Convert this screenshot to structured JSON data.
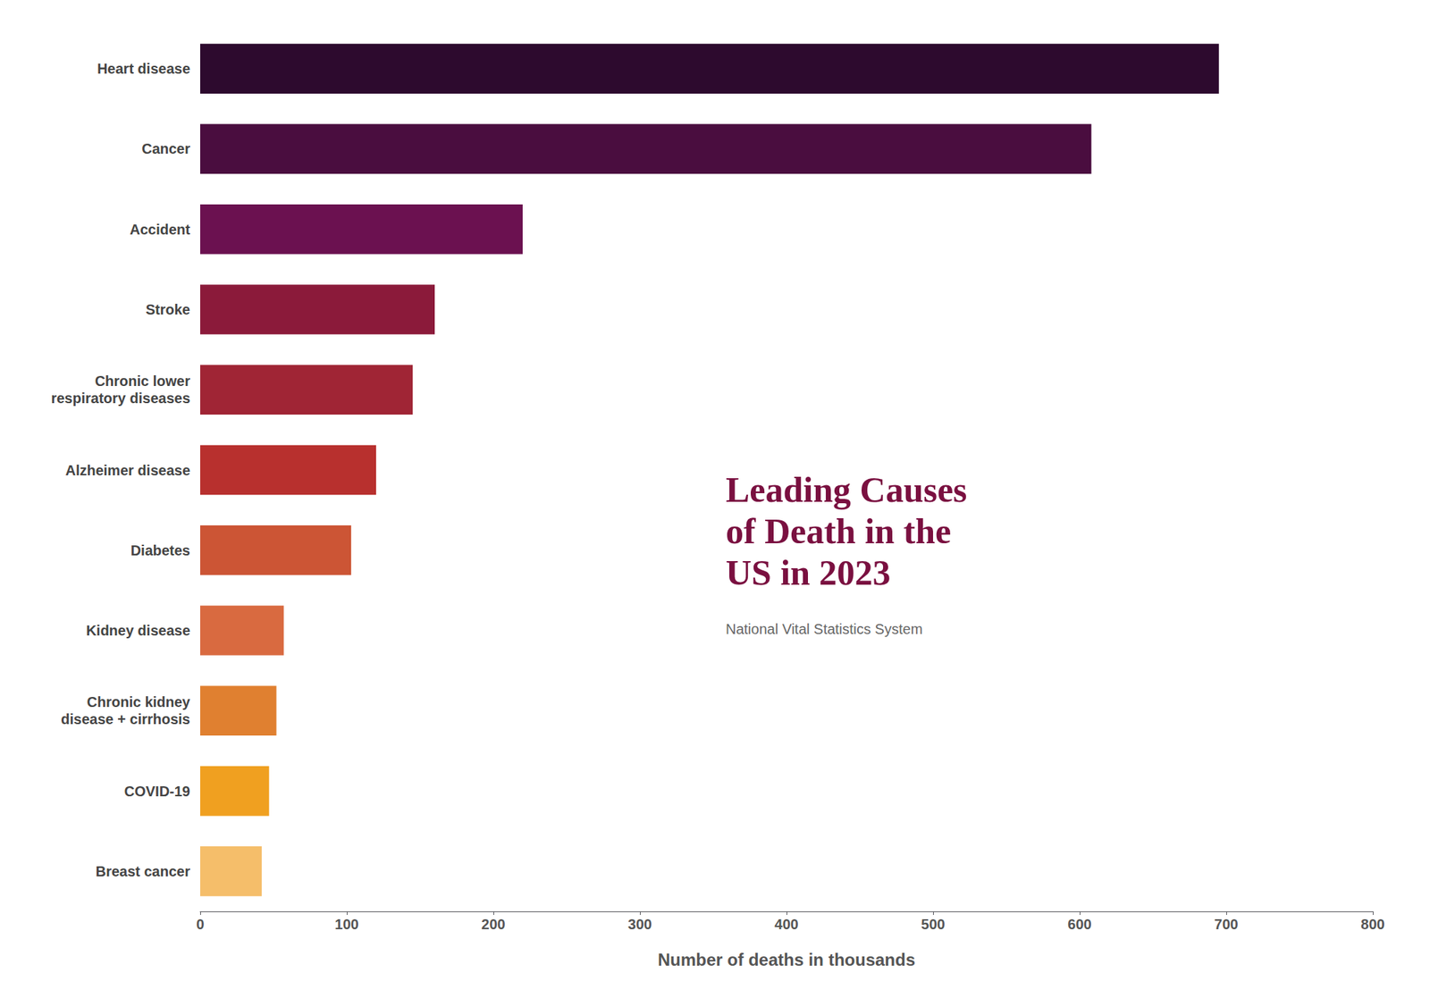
{
  "chart_data": {
    "type": "bar",
    "orientation": "horizontal",
    "title": "Leading Causes\nof Death in the\nUS in 2023",
    "subtitle": "National Vital Statistics System",
    "xlabel": "Number of deaths in thousands",
    "categories": [
      "Heart disease",
      "Cancer",
      "Accident",
      "Stroke",
      "Chronic lower\nrespiratory diseases",
      "Alzheimer disease",
      "Diabetes",
      "Kidney disease",
      "Chronic kidney\ndisease + cirrhosis",
      "COVID-19",
      "Breast cancer"
    ],
    "values": [
      695,
      608,
      220,
      160,
      145,
      120,
      103,
      57,
      52,
      47,
      42
    ],
    "colors": [
      "#2d0a2e",
      "#4a0d3f",
      "#6b1150",
      "#8b1a3a",
      "#a02535",
      "#b8302e",
      "#cc5535",
      "#d96a40",
      "#e08030",
      "#f0a020",
      "#f5be6a"
    ],
    "xlim": [
      0,
      800
    ],
    "xticks": [
      0,
      100,
      200,
      300,
      400,
      500,
      600,
      700,
      800
    ],
    "grid": false
  }
}
